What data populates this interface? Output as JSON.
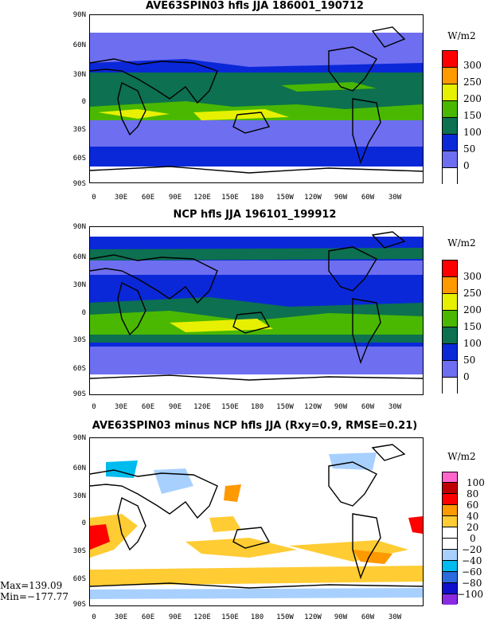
{
  "panels": [
    {
      "title": "AVE63SPIN03 hfls JJA 186001_190712",
      "colorbar_title": "W/m2",
      "colorbar_labels": [
        "300",
        "250",
        "200",
        "150",
        "100",
        "50",
        "0"
      ],
      "colorbar_colors": [
        "#ff0000",
        "#ff9900",
        "#e6f000",
        "#4ab800",
        "#0d7050",
        "#0a28d8",
        "#6e6ef0",
        "#ffffff"
      ]
    },
    {
      "title": "NCP hfls JJA 196101_199912",
      "colorbar_title": "W/m2",
      "colorbar_labels": [
        "300",
        "250",
        "200",
        "150",
        "100",
        "50",
        "0"
      ],
      "colorbar_colors": [
        "#ff0000",
        "#ff9900",
        "#e6f000",
        "#4ab800",
        "#0d7050",
        "#0a28d8",
        "#6e6ef0",
        "#ffffff"
      ]
    },
    {
      "title": "AVE63SPIN03 minus NCP hfls JJA (Rxy=0.9, RMSE=0.21)",
      "colorbar_title": "W/m2",
      "colorbar_labels": [
        "100",
        "80",
        "60",
        "40",
        "20",
        "0",
        "−20",
        "−40",
        "−60",
        "−80",
        "−100"
      ],
      "colorbar_colors": [
        "#ff66cc",
        "#c00000",
        "#ff0000",
        "#ff9900",
        "#ffcc33",
        "#ffffff",
        "#ffffff",
        "#a8d0ff",
        "#00bbee",
        "#2b6bdd",
        "#1010cc",
        "#8a2be2"
      ],
      "max_text": "Max=139.09",
      "min_text": "Min=−177.77"
    }
  ],
  "lat_labels": [
    "90N",
    "60N",
    "30N",
    "0",
    "30S",
    "60S",
    "90S"
  ],
  "lon_labels": [
    "0",
    "30E",
    "60E",
    "90E",
    "120E",
    "150E",
    "180",
    "150W",
    "120W",
    "90W",
    "60W",
    "30W"
  ]
}
